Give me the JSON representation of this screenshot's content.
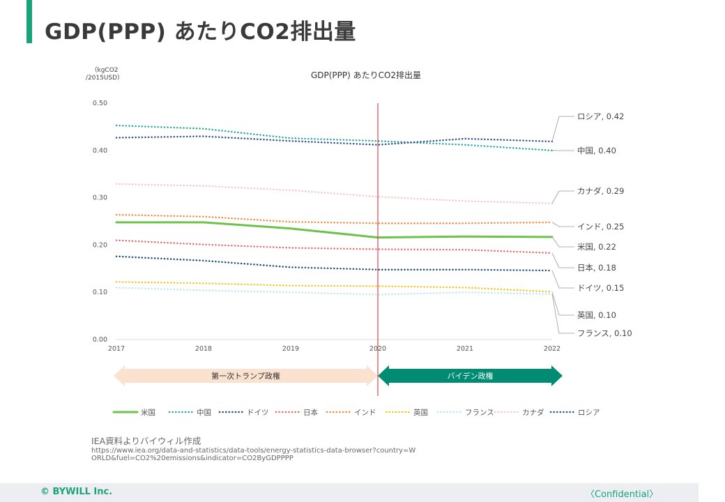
{
  "page": {
    "title": "GDP(PPP) あたりCO2排出量"
  },
  "source": {
    "title": "IEA資料よりバイウィル作成",
    "url": "https://www.iea.org/data-and-statistics/data-tools/energy-statistics-data-browser?country=WORLD&fuel=CO2%20emissions&indicator=CO2ByGDPPPP"
  },
  "footer": {
    "copyright": "© BYWILL Inc.",
    "confidential": "〈Confidential〉"
  },
  "chart_data": {
    "type": "line",
    "title": "GDP(PPP) あたりCO2排出量",
    "unit_label": [
      "（kgCO2",
      "/2015USD）"
    ],
    "x": [
      "2017",
      "2018",
      "2019",
      "2020",
      "2021",
      "2022"
    ],
    "ylim": [
      0,
      0.5
    ],
    "yticks": [
      "0.00",
      "0.10",
      "0.20",
      "0.30",
      "0.40",
      "0.50"
    ],
    "legend_position": "bottom",
    "marker_year": "2020",
    "series": [
      {
        "name": "米国",
        "style": "solid",
        "color": "#6cc24a",
        "values": [
          0.248,
          0.248,
          0.235,
          0.216,
          0.218,
          0.217
        ],
        "label": "米国, 0.22"
      },
      {
        "name": "中国",
        "style": "dotted",
        "color": "#2aa89a",
        "values": [
          0.453,
          0.446,
          0.426,
          0.42,
          0.412,
          0.4
        ],
        "label": "中国, 0.40"
      },
      {
        "name": "ドイツ",
        "style": "dotted",
        "color": "#1c4f72",
        "values": [
          0.176,
          0.167,
          0.153,
          0.148,
          0.148,
          0.146
        ],
        "label": "ドイツ, 0.15"
      },
      {
        "name": "日本",
        "style": "dotted",
        "color": "#e06b6b",
        "values": [
          0.21,
          0.201,
          0.194,
          0.191,
          0.19,
          0.183
        ],
        "label": "日本, 0.18"
      },
      {
        "name": "インド",
        "style": "dotted",
        "color": "#f08a3c",
        "values": [
          0.264,
          0.26,
          0.249,
          0.246,
          0.246,
          0.248
        ],
        "label": "インド, 0.25"
      },
      {
        "name": "英国",
        "style": "dotted",
        "color": "#f2c417",
        "values": [
          0.122,
          0.119,
          0.114,
          0.113,
          0.11,
          0.101
        ],
        "label": "英国, 0.10"
      },
      {
        "name": "フランス",
        "style": "dotted",
        "color": "#bfe6f0",
        "values": [
          0.11,
          0.104,
          0.1,
          0.095,
          0.1,
          0.096
        ],
        "label": "フランス, 0.10"
      },
      {
        "name": "カナダ",
        "style": "dotted",
        "color": "#f5c6cc",
        "values": [
          0.329,
          0.325,
          0.316,
          0.302,
          0.293,
          0.288
        ],
        "label": "カナダ, 0.29"
      },
      {
        "name": "ロシア",
        "style": "dotted",
        "color": "#2f4f8a",
        "values": [
          0.427,
          0.43,
          0.42,
          0.412,
          0.425,
          0.419
        ],
        "label": "ロシア, 0.42"
      }
    ],
    "label_order": [
      "ロシア",
      "中国",
      "カナダ",
      "インド",
      "米国",
      "日本",
      "ドイツ",
      "英国",
      "フランス"
    ],
    "eras": [
      {
        "label": "第一次トランプ政権",
        "from": "2017",
        "to": "2020",
        "color": "#fbe1cf",
        "text_color": "#333333"
      },
      {
        "label": "バイデン政権",
        "from": "2020",
        "to": "2022",
        "color": "#008c73",
        "text_color": "#ffffff"
      }
    ]
  }
}
